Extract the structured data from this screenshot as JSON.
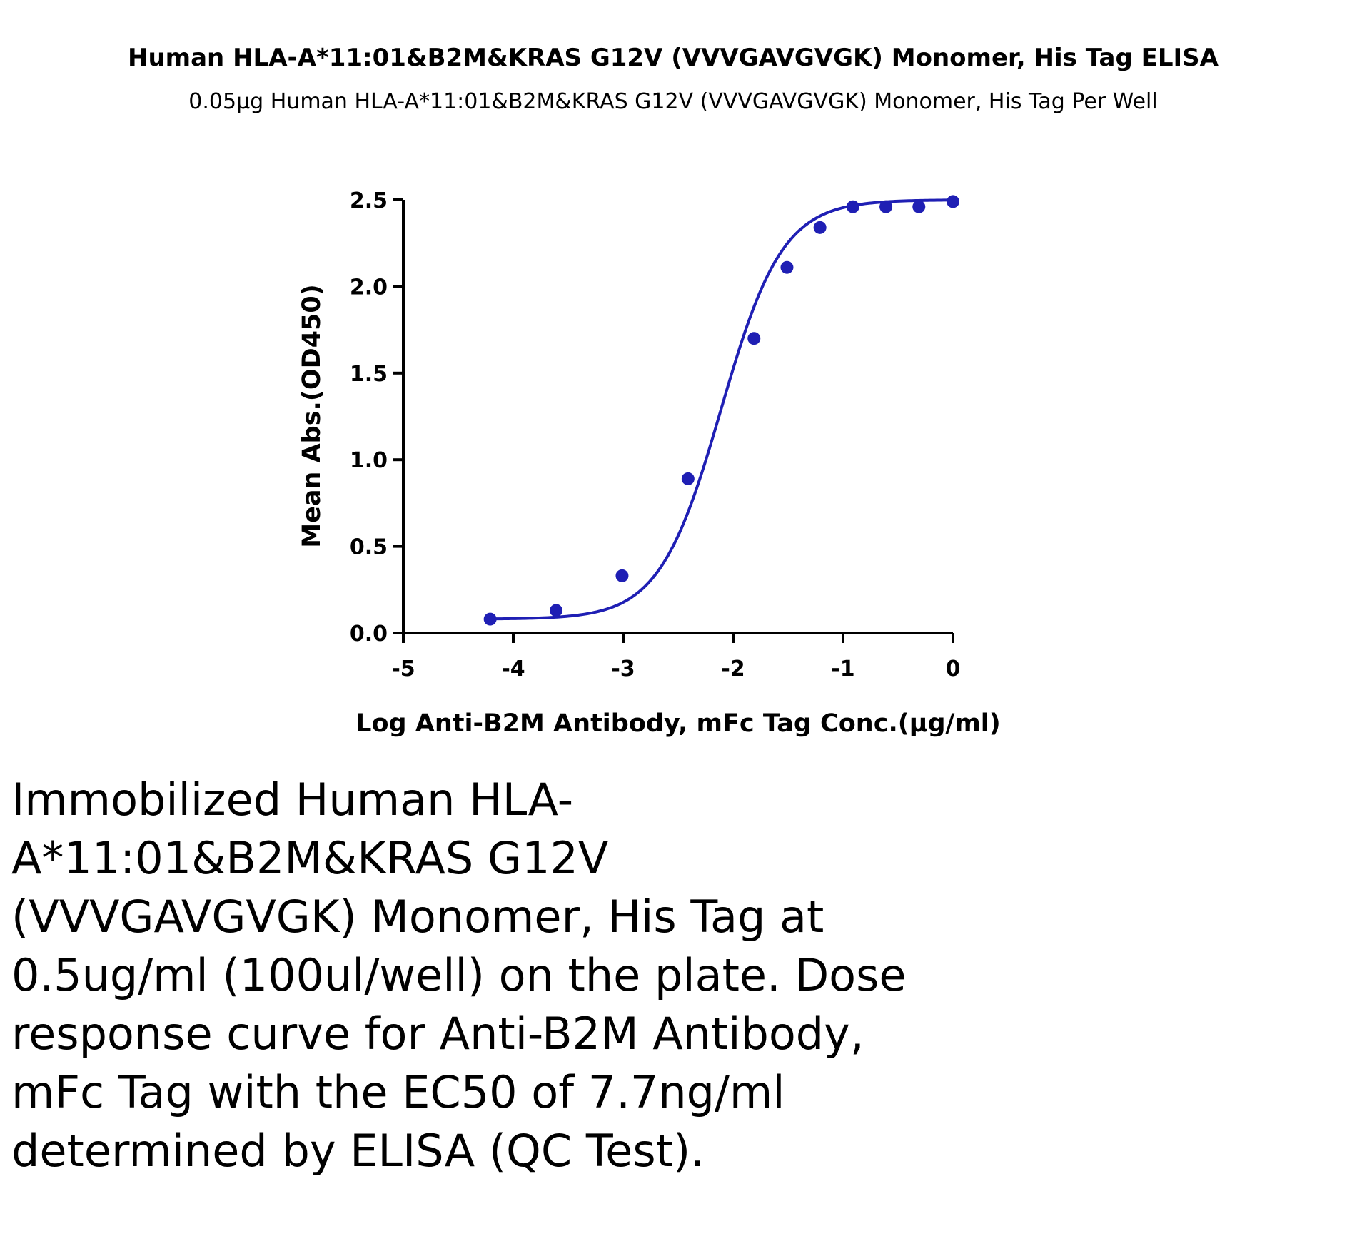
{
  "chart_data": {
    "type": "scatter",
    "title": "Human HLA-A*11:01&B2M&KRAS G12V (VVVGAVGVGK) Monomer, His Tag ELISA",
    "subtitle": "0.05μg Human HLA-A*11:01&B2M&KRAS G12V (VVVGAVGVGK) Monomer, His Tag Per Well",
    "xlabel": "Log Anti-B2M Antibody, mFc Tag Conc.(μg/ml)",
    "ylabel": "Mean Abs.(OD450)",
    "xlim": [
      -5,
      0
    ],
    "ylim": [
      0,
      2.5
    ],
    "xticks": [
      -5,
      -4,
      -3,
      -2,
      -1,
      0
    ],
    "xtick_labels": [
      "-5",
      "-4",
      "-3",
      "-2",
      "-1",
      "0"
    ],
    "yticks": [
      0,
      0.5,
      1,
      1.5,
      2,
      2.5
    ],
    "ytick_labels": [
      "0.0",
      "0.5",
      "1.0",
      "1.5",
      "2.0",
      "2.5"
    ],
    "grid": false,
    "color": "#1f1fb4",
    "points": {
      "x": [
        -4.21,
        -3.61,
        -3.01,
        -2.41,
        -1.81,
        -1.51,
        -1.21,
        -0.91,
        -0.61,
        -0.31,
        0
      ],
      "y": [
        0.08,
        0.13,
        0.33,
        0.89,
        1.7,
        2.11,
        2.34,
        2.46,
        2.46,
        2.46,
        2.49
      ]
    },
    "fit": {
      "model": "4PL",
      "bottom": 0.08,
      "top": 2.5,
      "log_ec50": -2.11,
      "hill": 1.55,
      "x_range": [
        -4.21,
        0
      ]
    }
  },
  "caption": "Immobilized Human HLA-A*11:01&B2M&KRAS G12V (VVVGAVGVGK) Monomer, His Tag at 0.5ug/ml (100ul/well) on the plate. Dose response curve for Anti-B2M Antibody, mFc Tag with the EC50 of 7.7ng/ml determined by ELISA (QC Test)."
}
